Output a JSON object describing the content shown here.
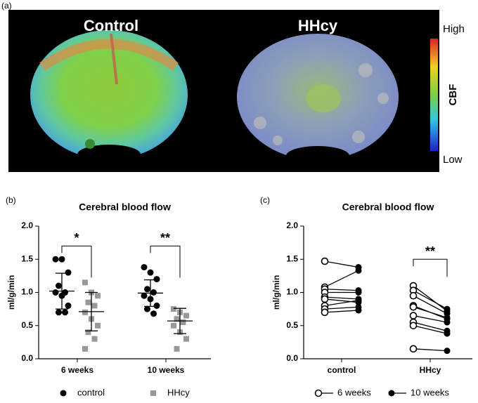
{
  "panel_a": {
    "panel_label": "(a)",
    "labels": [
      "Control",
      "HHcy"
    ],
    "colorbar": {
      "title": "CBF",
      "high": "High",
      "low": "Low"
    }
  },
  "chart_data": [
    {
      "type": "dotplot",
      "panel_label": "(b)",
      "title": "Cerebral blood flow",
      "y_label": "ml/g/min",
      "categories": [
        "6 weeks",
        "10 weeks"
      ],
      "ylim": [
        0,
        2
      ],
      "yticks": [
        {
          "value": 0,
          "label": "0.0"
        },
        0.5,
        {
          "value": 1,
          "label": "1.0"
        },
        1.5,
        {
          "value": 2,
          "label": "2.0"
        }
      ],
      "series": [
        {
          "name": "control",
          "color": "#000000",
          "marker": "circle",
          "values": [
            [
              1.5,
              1.5,
              1.3,
              1.1,
              1.0,
              1.0,
              0.95,
              0.8,
              0.7,
              0.7
            ],
            [
              1.38,
              1.3,
              1.2,
              1.05,
              1.0,
              0.95,
              0.9,
              0.8,
              0.75,
              0.68
            ]
          ],
          "means": [
            1.02,
            0.99
          ],
          "sd": [
            0.27,
            0.2
          ]
        },
        {
          "name": "HHcy",
          "color": "#999999",
          "marker": "square",
          "values": [
            [
              1.15,
              1.0,
              0.95,
              0.85,
              0.8,
              0.7,
              0.6,
              0.5,
              0.4,
              0.3,
              0.15
            ],
            [
              0.75,
              0.7,
              0.65,
              0.6,
              0.55,
              0.5,
              0.4,
              0.3,
              0.15
            ]
          ],
          "means": [
            0.71,
            0.57
          ],
          "sd": [
            0.29,
            0.19
          ]
        }
      ],
      "annotations": [
        {
          "text": "*",
          "category": 0,
          "y": 1.7
        },
        {
          "text": "**",
          "category": 1,
          "y": 1.7
        }
      ]
    },
    {
      "type": "slope",
      "panel_label": "(c)",
      "title": "Cerebral blood flow",
      "y_label": "ml/g/min",
      "categories": [
        "control",
        "HHcy"
      ],
      "ylim": [
        0,
        2
      ],
      "yticks": [
        {
          "value": 0,
          "label": "0.0"
        },
        0.5,
        {
          "value": 1,
          "label": "1.0"
        },
        1.5,
        {
          "value": 2,
          "label": "2.0"
        }
      ],
      "series": [
        {
          "name": "6 weeks",
          "color": "#000000",
          "marker": "open-circle",
          "values": [
            [
              1.47,
              1.08,
              1.05,
              1.0,
              0.93,
              0.9,
              0.8,
              0.75,
              0.7
            ],
            [
              1.1,
              1.03,
              0.95,
              0.8,
              0.78,
              0.65,
              0.55,
              0.5,
              0.15
            ]
          ]
        },
        {
          "name": "10 weeks",
          "color": "#000000",
          "marker": "circle",
          "values": [
            [
              1.38,
              1.33,
              1.03,
              1.0,
              0.9,
              0.85,
              0.88,
              0.78,
              0.73
            ],
            [
              0.72,
              0.75,
              0.68,
              0.6,
              0.62,
              0.55,
              0.42,
              0.38,
              0.12
            ]
          ]
        }
      ],
      "annotations": [
        {
          "text": "**",
          "category": 1,
          "y": 1.5
        }
      ]
    }
  ]
}
